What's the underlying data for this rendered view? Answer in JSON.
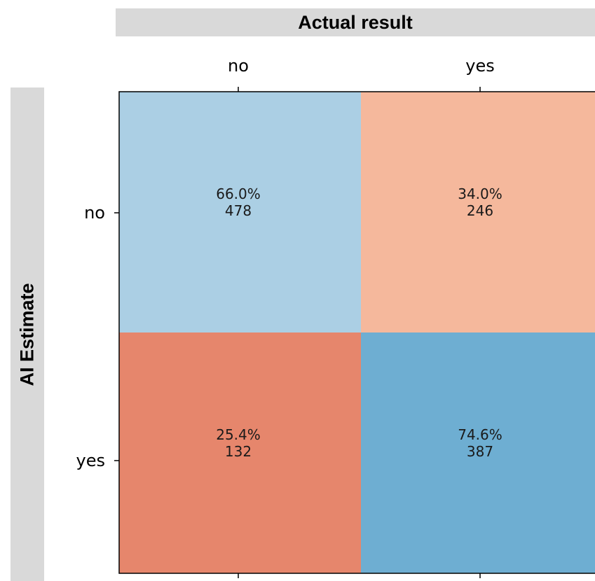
{
  "chart_data": {
    "type": "heatmap",
    "x_axis_title": "Actual result",
    "y_axis_title": "AI Estimate",
    "x_categories": [
      "no",
      "yes"
    ],
    "y_categories": [
      "no",
      "yes"
    ],
    "cells": [
      {
        "row": 0,
        "col": 0,
        "percent": "66.0%",
        "count": 478,
        "color": "#abcfe4"
      },
      {
        "row": 0,
        "col": 1,
        "percent": "34.0%",
        "count": 246,
        "color": "#f5b89c"
      },
      {
        "row": 1,
        "col": 0,
        "percent": "25.4%",
        "count": 132,
        "color": "#e6866c"
      },
      {
        "row": 1,
        "col": 1,
        "percent": "74.6%",
        "count": 387,
        "color": "#6eaed2"
      }
    ]
  }
}
